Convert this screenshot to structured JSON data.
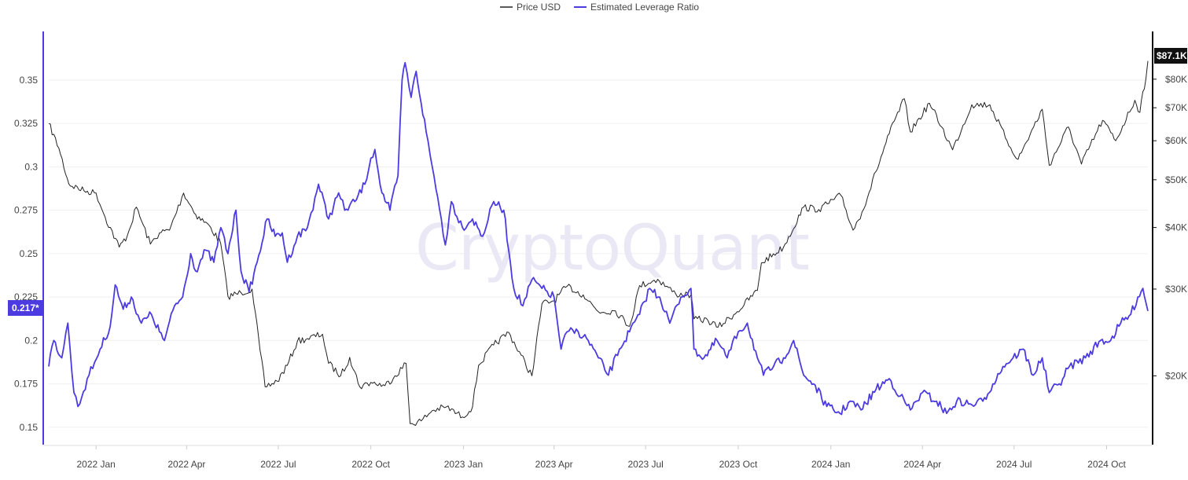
{
  "legend": [
    {
      "name": "Price USD",
      "color": "#222222"
    },
    {
      "name": "Estimated Leverage Ratio",
      "color": "#4b3be0"
    }
  ],
  "watermark": "CryptoQuant",
  "colors": {
    "price": "#222222",
    "leverage": "#4b3be0",
    "grid": "#efefef",
    "left_axis": "#4b3be0",
    "right_axis": "#111111",
    "price_badge": "#111111",
    "leverage_badge": "#4b3be0"
  },
  "current_values": {
    "price_label": "$87.1K",
    "leverage_label": "0.217*",
    "price": 87100,
    "leverage": 0.217
  },
  "chart_data": {
    "type": "line",
    "x_axis": {
      "type": "date",
      "range": [
        "2021-11-15",
        "2024-11-11"
      ],
      "tick_labels": [
        "2022 Jan",
        "2022 Apr",
        "2022 Jul",
        "2022 Oct",
        "2023 Jan",
        "2023 Apr",
        "2023 Jul",
        "2023 Oct",
        "2024 Jan",
        "2024 Apr",
        "2024 Jul",
        "2024 Oct"
      ],
      "ticks": [
        "2022-01-01",
        "2022-04-01",
        "2022-07-01",
        "2022-10-01",
        "2023-01-01",
        "2023-04-01",
        "2023-07-01",
        "2023-10-01",
        "2024-01-01",
        "2024-04-01",
        "2024-07-01",
        "2024-10-01"
      ]
    },
    "y_left": {
      "range": [
        0.14,
        0.378
      ],
      "ticks": [
        0.15,
        0.175,
        0.2,
        0.225,
        0.25,
        0.275,
        0.3,
        0.325,
        0.35
      ],
      "tick_labels": [
        "0.15",
        "0.175",
        "0.2",
        "0.225",
        "0.25",
        "0.275",
        "0.3",
        "0.325",
        "0.35"
      ]
    },
    "y_right": {
      "scale": "log",
      "range": [
        14500,
        100000
      ],
      "ticks": [
        20000,
        30000,
        40000,
        50000,
        60000,
        70000,
        80000
      ],
      "tick_labels": [
        "$20K",
        "$30K",
        "$40K",
        "$50K",
        "$60K",
        "$70K",
        "$80K"
      ]
    },
    "grid": true,
    "legend_position": "top-center",
    "series": [
      {
        "name": "Price USD",
        "axis": "right",
        "points": [
          [
            "2021-11-15",
            65000
          ],
          [
            "2021-11-25",
            58000
          ],
          [
            "2021-12-05",
            49000
          ],
          [
            "2021-12-20",
            47500
          ],
          [
            "2022-01-01",
            47000
          ],
          [
            "2022-01-10",
            42000
          ],
          [
            "2022-01-24",
            36500
          ],
          [
            "2022-02-01",
            38500
          ],
          [
            "2022-02-10",
            44000
          ],
          [
            "2022-02-24",
            37000
          ],
          [
            "2022-03-05",
            39000
          ],
          [
            "2022-03-15",
            39500
          ],
          [
            "2022-03-29",
            47000
          ],
          [
            "2022-04-10",
            42500
          ],
          [
            "2022-04-25",
            40000
          ],
          [
            "2022-05-05",
            37000
          ],
          [
            "2022-05-12",
            29000
          ],
          [
            "2022-05-25",
            29500
          ],
          [
            "2022-06-05",
            30000
          ],
          [
            "2022-06-13",
            22500
          ],
          [
            "2022-06-18",
            19000
          ],
          [
            "2022-06-30",
            19500
          ],
          [
            "2022-07-10",
            21000
          ],
          [
            "2022-07-20",
            23500
          ],
          [
            "2022-07-30",
            23800
          ],
          [
            "2022-08-14",
            24300
          ],
          [
            "2022-08-20",
            21200
          ],
          [
            "2022-09-01",
            20000
          ],
          [
            "2022-09-10",
            21800
          ],
          [
            "2022-09-20",
            19000
          ],
          [
            "2022-10-01",
            19400
          ],
          [
            "2022-10-15",
            19100
          ],
          [
            "2022-10-25",
            20000
          ],
          [
            "2022-11-05",
            21200
          ],
          [
            "2022-11-09",
            16000
          ],
          [
            "2022-11-20",
            16200
          ],
          [
            "2022-12-01",
            17000
          ],
          [
            "2022-12-15",
            17300
          ],
          [
            "2022-12-31",
            16500
          ],
          [
            "2023-01-10",
            17300
          ],
          [
            "2023-01-16",
            21000
          ],
          [
            "2023-01-31",
            23100
          ],
          [
            "2023-02-15",
            24500
          ],
          [
            "2023-03-10",
            20000
          ],
          [
            "2023-03-20",
            28000
          ],
          [
            "2023-04-01",
            28400
          ],
          [
            "2023-04-14",
            30400
          ],
          [
            "2023-04-30",
            29200
          ],
          [
            "2023-05-15",
            27000
          ],
          [
            "2023-06-01",
            27100
          ],
          [
            "2023-06-15",
            25200
          ],
          [
            "2023-06-25",
            30500
          ],
          [
            "2023-07-13",
            31400
          ],
          [
            "2023-07-31",
            29300
          ],
          [
            "2023-08-15",
            29200
          ],
          [
            "2023-08-18",
            26100
          ],
          [
            "2023-09-01",
            25900
          ],
          [
            "2023-09-11",
            25100
          ],
          [
            "2023-09-30",
            27000
          ],
          [
            "2023-10-20",
            29800
          ],
          [
            "2023-10-24",
            33900
          ],
          [
            "2023-11-15",
            36500
          ],
          [
            "2023-12-05",
            44000
          ],
          [
            "2023-12-20",
            43500
          ],
          [
            "2024-01-11",
            46500
          ],
          [
            "2024-01-23",
            39500
          ],
          [
            "2024-02-01",
            43000
          ],
          [
            "2024-02-15",
            52000
          ],
          [
            "2024-02-28",
            62000
          ],
          [
            "2024-03-14",
            73000
          ],
          [
            "2024-03-20",
            62500
          ],
          [
            "2024-04-08",
            71500
          ],
          [
            "2024-04-20",
            64000
          ],
          [
            "2024-05-01",
            57500
          ],
          [
            "2024-05-20",
            71000
          ],
          [
            "2024-06-07",
            71000
          ],
          [
            "2024-06-24",
            60000
          ],
          [
            "2024-07-05",
            55000
          ],
          [
            "2024-07-29",
            69500
          ],
          [
            "2024-08-05",
            53500
          ],
          [
            "2024-08-24",
            64000
          ],
          [
            "2024-09-06",
            53800
          ],
          [
            "2024-09-27",
            66000
          ],
          [
            "2024-10-10",
            60000
          ],
          [
            "2024-10-29",
            72500
          ],
          [
            "2024-11-03",
            68500
          ],
          [
            "2024-11-06",
            75500
          ],
          [
            "2024-11-09",
            80000
          ],
          [
            "2024-11-11",
            87100
          ]
        ]
      },
      {
        "name": "Estimated Leverage Ratio",
        "axis": "left",
        "points": [
          [
            "2021-11-15",
            0.185
          ],
          [
            "2021-11-20",
            0.2
          ],
          [
            "2021-11-28",
            0.19
          ],
          [
            "2021-12-04",
            0.21
          ],
          [
            "2021-12-10",
            0.17
          ],
          [
            "2021-12-14",
            0.162
          ],
          [
            "2021-12-25",
            0.18
          ],
          [
            "2022-01-05",
            0.195
          ],
          [
            "2022-01-15",
            0.208
          ],
          [
            "2022-01-20",
            0.232
          ],
          [
            "2022-01-28",
            0.218
          ],
          [
            "2022-02-05",
            0.225
          ],
          [
            "2022-02-15",
            0.21
          ],
          [
            "2022-02-25",
            0.215
          ],
          [
            "2022-03-05",
            0.205
          ],
          [
            "2022-03-10",
            0.2
          ],
          [
            "2022-03-20",
            0.22
          ],
          [
            "2022-03-28",
            0.225
          ],
          [
            "2022-04-05",
            0.25
          ],
          [
            "2022-04-10",
            0.24
          ],
          [
            "2022-04-20",
            0.252
          ],
          [
            "2022-04-28",
            0.245
          ],
          [
            "2022-05-05",
            0.265
          ],
          [
            "2022-05-12",
            0.25
          ],
          [
            "2022-05-20",
            0.275
          ],
          [
            "2022-05-25",
            0.24
          ],
          [
            "2022-06-02",
            0.228
          ],
          [
            "2022-06-10",
            0.245
          ],
          [
            "2022-06-20",
            0.27
          ],
          [
            "2022-06-28",
            0.26
          ],
          [
            "2022-07-05",
            0.262
          ],
          [
            "2022-07-10",
            0.245
          ],
          [
            "2022-07-20",
            0.26
          ],
          [
            "2022-07-30",
            0.265
          ],
          [
            "2022-08-10",
            0.29
          ],
          [
            "2022-08-20",
            0.27
          ],
          [
            "2022-08-30",
            0.285
          ],
          [
            "2022-09-05",
            0.275
          ],
          [
            "2022-09-15",
            0.28
          ],
          [
            "2022-09-25",
            0.29
          ],
          [
            "2022-10-01",
            0.305
          ],
          [
            "2022-10-05",
            0.31
          ],
          [
            "2022-10-12",
            0.285
          ],
          [
            "2022-10-20",
            0.275
          ],
          [
            "2022-10-28",
            0.295
          ],
          [
            "2022-11-01",
            0.35
          ],
          [
            "2022-11-04",
            0.36
          ],
          [
            "2022-11-10",
            0.34
          ],
          [
            "2022-11-15",
            0.355
          ],
          [
            "2022-11-25",
            0.32
          ],
          [
            "2022-12-01",
            0.3
          ],
          [
            "2022-12-10",
            0.27
          ],
          [
            "2022-12-14",
            0.255
          ],
          [
            "2022-12-20",
            0.28
          ],
          [
            "2022-12-31",
            0.265
          ],
          [
            "2023-01-10",
            0.27
          ],
          [
            "2023-01-20",
            0.26
          ],
          [
            "2023-01-31",
            0.28
          ],
          [
            "2023-02-10",
            0.275
          ],
          [
            "2023-02-20",
            0.23
          ],
          [
            "2023-03-01",
            0.22
          ],
          [
            "2023-03-10",
            0.235
          ],
          [
            "2023-03-20",
            0.23
          ],
          [
            "2023-04-01",
            0.225
          ],
          [
            "2023-04-08",
            0.195
          ],
          [
            "2023-04-14",
            0.205
          ],
          [
            "2023-04-25",
            0.205
          ],
          [
            "2023-05-05",
            0.2
          ],
          [
            "2023-05-15",
            0.19
          ],
          [
            "2023-05-25",
            0.18
          ],
          [
            "2023-06-05",
            0.195
          ],
          [
            "2023-06-15",
            0.205
          ],
          [
            "2023-06-25",
            0.215
          ],
          [
            "2023-07-05",
            0.23
          ],
          [
            "2023-07-15",
            0.225
          ],
          [
            "2023-07-25",
            0.21
          ],
          [
            "2023-08-05",
            0.225
          ],
          [
            "2023-08-15",
            0.23
          ],
          [
            "2023-08-18",
            0.195
          ],
          [
            "2023-08-28",
            0.19
          ],
          [
            "2023-09-10",
            0.2
          ],
          [
            "2023-09-20",
            0.19
          ],
          [
            "2023-10-01",
            0.205
          ],
          [
            "2023-10-10",
            0.21
          ],
          [
            "2023-10-20",
            0.19
          ],
          [
            "2023-10-26",
            0.18
          ],
          [
            "2023-11-05",
            0.185
          ],
          [
            "2023-11-15",
            0.19
          ],
          [
            "2023-11-25",
            0.2
          ],
          [
            "2023-12-05",
            0.18
          ],
          [
            "2023-12-15",
            0.175
          ],
          [
            "2023-12-28",
            0.162
          ],
          [
            "2024-01-10",
            0.158
          ],
          [
            "2024-01-20",
            0.165
          ],
          [
            "2024-01-31",
            0.16
          ],
          [
            "2024-02-15",
            0.172
          ],
          [
            "2024-02-28",
            0.178
          ],
          [
            "2024-03-10",
            0.168
          ],
          [
            "2024-03-20",
            0.16
          ],
          [
            "2024-04-01",
            0.17
          ],
          [
            "2024-04-15",
            0.165
          ],
          [
            "2024-04-25",
            0.158
          ],
          [
            "2024-05-05",
            0.165
          ],
          [
            "2024-05-20",
            0.163
          ],
          [
            "2024-05-31",
            0.165
          ],
          [
            "2024-06-10",
            0.175
          ],
          [
            "2024-06-20",
            0.185
          ],
          [
            "2024-06-30",
            0.19
          ],
          [
            "2024-07-10",
            0.195
          ],
          [
            "2024-07-20",
            0.18
          ],
          [
            "2024-07-29",
            0.19
          ],
          [
            "2024-08-05",
            0.17
          ],
          [
            "2024-08-15",
            0.175
          ],
          [
            "2024-08-25",
            0.185
          ],
          [
            "2024-09-10",
            0.19
          ],
          [
            "2024-09-25",
            0.2
          ],
          [
            "2024-10-05",
            0.2
          ],
          [
            "2024-10-15",
            0.21
          ],
          [
            "2024-10-25",
            0.215
          ],
          [
            "2024-11-01",
            0.225
          ],
          [
            "2024-11-06",
            0.23
          ],
          [
            "2024-11-09",
            0.222
          ],
          [
            "2024-11-11",
            0.217
          ]
        ]
      }
    ]
  }
}
